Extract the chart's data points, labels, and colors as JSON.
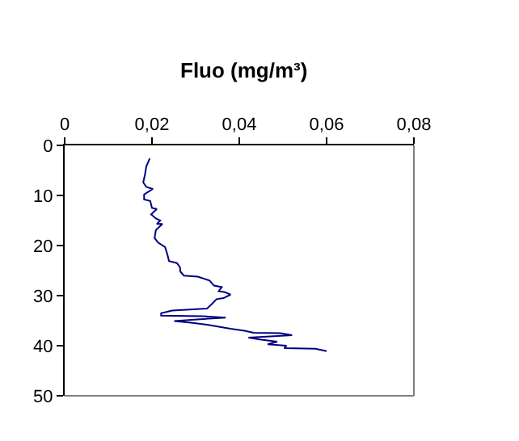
{
  "chart_data": {
    "type": "line",
    "title": "Fluo (mg/m³)",
    "x": [
      0.0195,
      0.0187,
      0.0184,
      0.018,
      0.0187,
      0.0202,
      0.0182,
      0.0182,
      0.0196,
      0.02,
      0.0211,
      0.0198,
      0.0209,
      0.0219,
      0.0211,
      0.0224,
      0.0209,
      0.0206,
      0.0214,
      0.023,
      0.0235,
      0.0239,
      0.0257,
      0.0264,
      0.0265,
      0.0273,
      0.0305,
      0.0332,
      0.0342,
      0.036,
      0.0353,
      0.0367,
      0.038,
      0.0364,
      0.0348,
      0.0337,
      0.0326,
      0.0246,
      0.0221,
      0.0221,
      0.0316,
      0.0369,
      0.031,
      0.0251,
      0.0289,
      0.0326,
      0.038,
      0.0412,
      0.0433,
      0.0494,
      0.0521,
      0.0421,
      0.045,
      0.0487,
      0.0465,
      0.0508,
      0.0503,
      0.0574,
      0.06
    ],
    "series": [
      {
        "color": "#000080",
        "values": [
          2.6,
          4.2,
          5.8,
          7.4,
          8.3,
          8.7,
          9.8,
          10.8,
          11.1,
          12.5,
          12.7,
          13.8,
          14.6,
          15,
          15.7,
          15.7,
          16.9,
          18.5,
          19.4,
          20.3,
          21.7,
          23.1,
          23.5,
          24.3,
          25.2,
          26,
          26.2,
          27,
          28,
          28.3,
          29.1,
          29.3,
          29.8,
          30.5,
          30.7,
          31.7,
          32.6,
          33,
          33.5,
          34,
          34.1,
          34.4,
          34.7,
          35.1,
          35.4,
          35.8,
          36.6,
          37,
          37.4,
          37.5,
          37.9,
          38.4,
          38.8,
          39.2,
          39.7,
          40,
          40.5,
          40.6,
          41.1
        ]
      }
    ],
    "xlim": [
      0,
      0.08
    ],
    "xticks": [
      {
        "value": 0,
        "label": "0"
      },
      {
        "value": 0.02,
        "label": "0,02"
      },
      {
        "value": 0.04,
        "label": "0,04"
      },
      {
        "value": 0.06,
        "label": "0,06"
      },
      {
        "value": 0.08,
        "label": "0,08"
      }
    ],
    "ylim": [
      50,
      0
    ],
    "yticks": [
      0,
      10,
      20,
      30,
      40,
      50
    ],
    "grid": false,
    "legend": false,
    "marker": "none",
    "line_style": "solid"
  }
}
